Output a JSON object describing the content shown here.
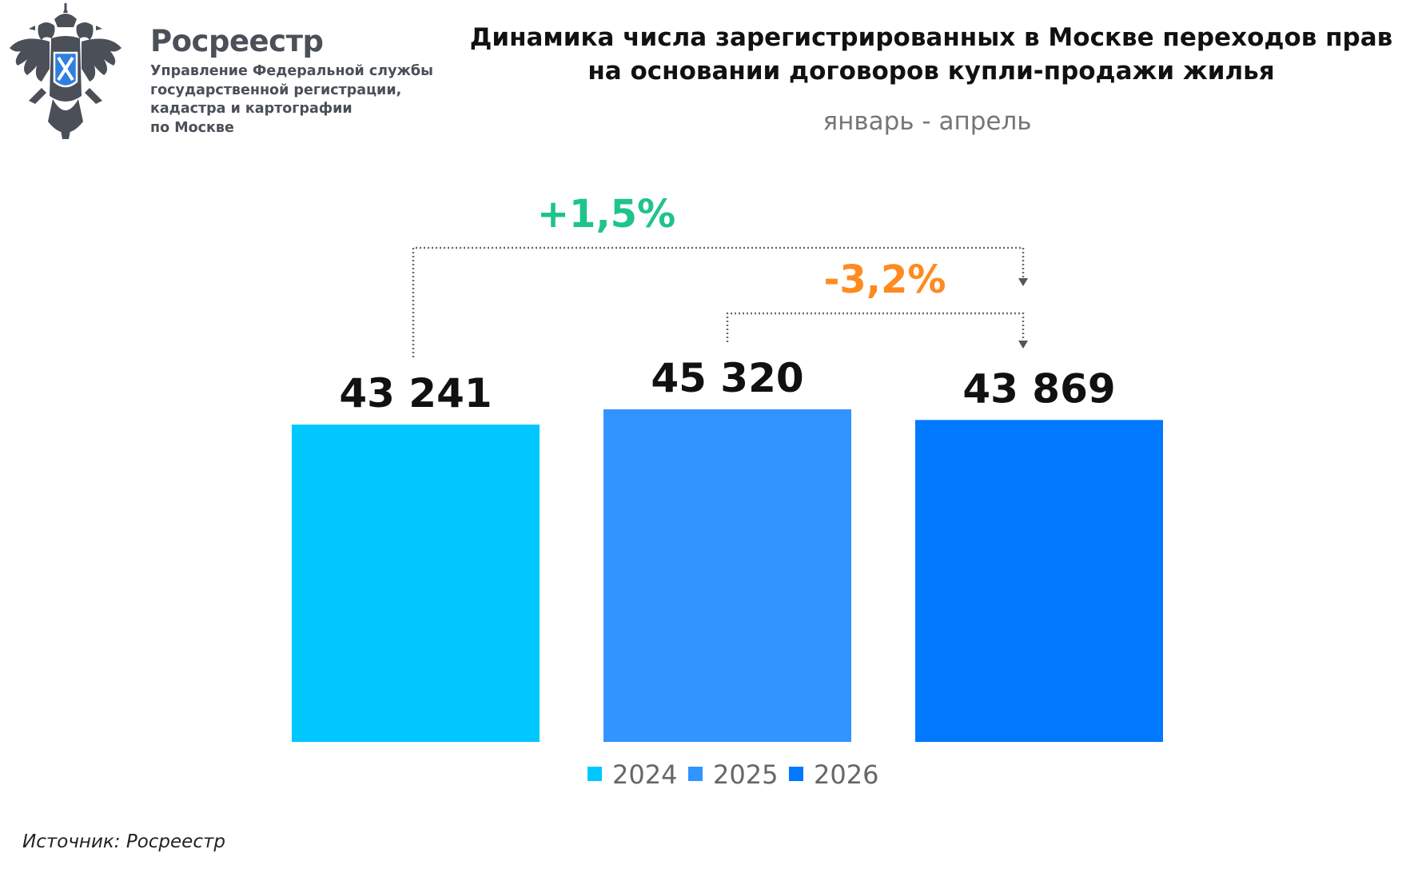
{
  "brand": {
    "name": "Росреестр",
    "subtitle_lines": [
      "Управление Федеральной службы",
      "государственной регистрации,",
      "кадастра и картографии",
      "по Москве"
    ]
  },
  "source": "Источник: Росреестр",
  "chart_data": {
    "type": "bar",
    "title_lines": [
      "Динамика числа зарегистрированных в Москве переходов прав",
      "на основании договоров купли-продажи жилья"
    ],
    "subtitle": "январь - апрель",
    "categories": [
      "2024",
      "2025",
      "2026"
    ],
    "values": [
      43241,
      45320,
      43869
    ],
    "value_labels": [
      "43 241",
      "45 320",
      "43 869"
    ],
    "colors": [
      "#00c8ff",
      "#3294ff",
      "#0079fe"
    ],
    "ylim": [
      0,
      50000
    ],
    "legend": {
      "position": "bottom",
      "entries": [
        "2024",
        "2025",
        "2026"
      ]
    },
    "annotations": [
      {
        "text": "+1,5%",
        "from": "2024",
        "to": "2026",
        "color": "#1ec48a"
      },
      {
        "text": "-3,2%",
        "from": "2025",
        "to": "2026",
        "color": "#ff8a1f"
      }
    ],
    "grid": false
  }
}
